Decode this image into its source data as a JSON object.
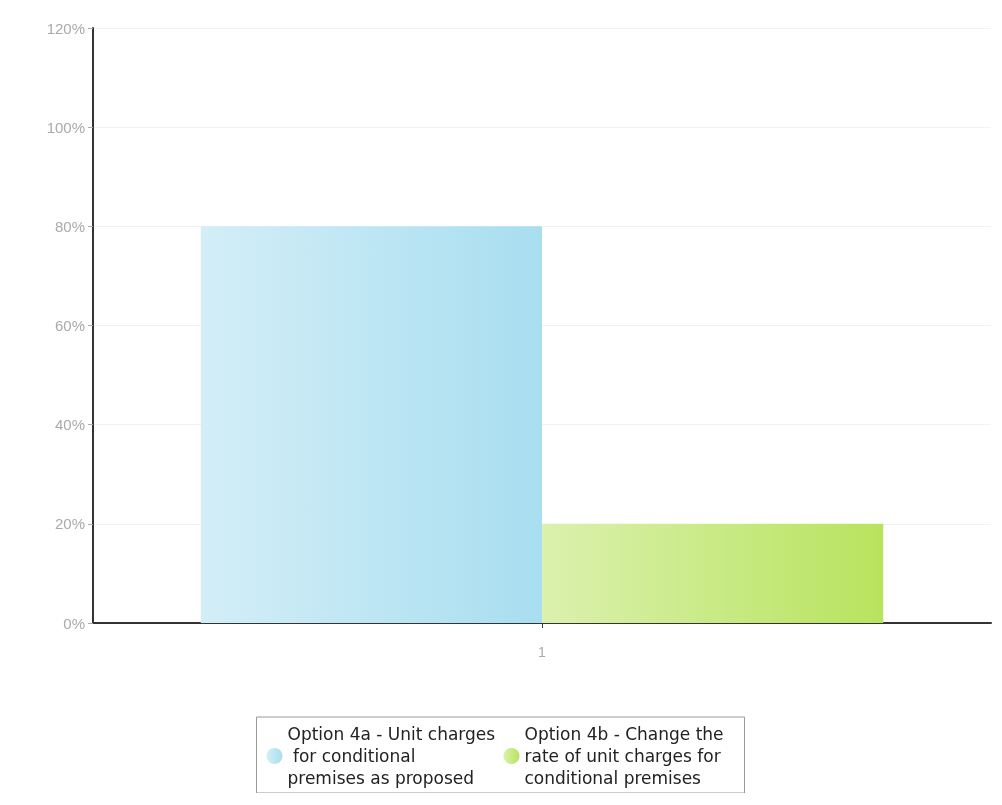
{
  "chart_data": {
    "type": "bar",
    "categories": [
      "1"
    ],
    "series": [
      {
        "name": "Option 4a - Unit charges for conditional premises as proposed",
        "color": "#a8def0",
        "values": [
          80
        ]
      },
      {
        "name": "Option 4b - Change the rate of unit charges for conditional premises",
        "color": "#b8e35e",
        "values": [
          20
        ]
      }
    ],
    "ylim": [
      0,
      120
    ],
    "yticks": [
      {
        "value": 0,
        "label": "0%"
      },
      {
        "value": 20,
        "label": "20%"
      },
      {
        "value": 40,
        "label": "40%"
      },
      {
        "value": 60,
        "label": "60%"
      },
      {
        "value": 80,
        "label": "80%"
      },
      {
        "value": 100,
        "label": "100%"
      },
      {
        "value": 120,
        "label": "120%"
      }
    ],
    "grid": "y",
    "legend": "bottom"
  }
}
